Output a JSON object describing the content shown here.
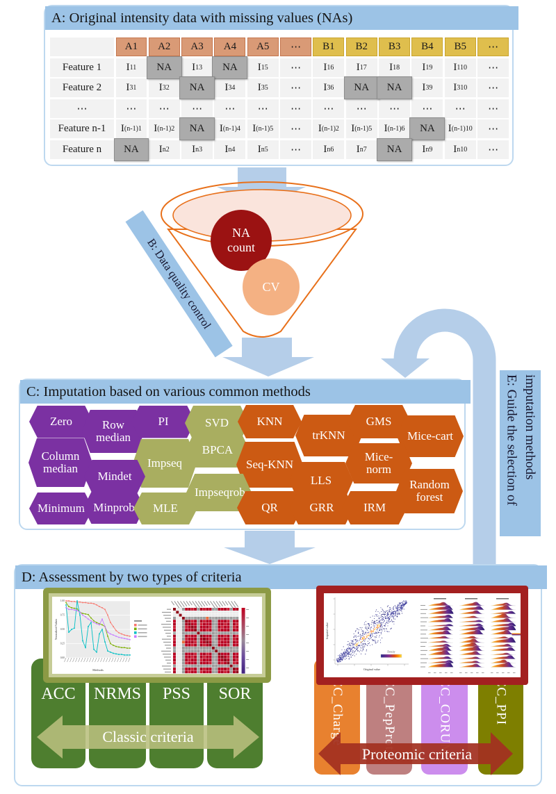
{
  "panel_a": {
    "title": "A: Original intensity data with missing values (NAs)",
    "table": {
      "headers": [
        {
          "t": "",
          "g": "x"
        },
        {
          "t": "A1",
          "g": "a"
        },
        {
          "t": "A2",
          "g": "a"
        },
        {
          "t": "A3",
          "g": "a"
        },
        {
          "t": "A4",
          "g": "a"
        },
        {
          "t": "A5",
          "g": "a"
        },
        {
          "t": "⋯",
          "g": "a"
        },
        {
          "t": "B1",
          "g": "b"
        },
        {
          "t": "B2",
          "g": "b"
        },
        {
          "t": "B3",
          "g": "b"
        },
        {
          "t": "B4",
          "g": "b"
        },
        {
          "t": "B5",
          "g": "b"
        },
        {
          "t": "⋯",
          "g": "b"
        }
      ],
      "rows": [
        {
          "label": "Feature 1",
          "cells": [
            "I_{11}",
            "NA",
            "I_{13}",
            "NA",
            "I_{15}",
            "⋯",
            "I_{16}",
            "I_{17}",
            "I_{18}",
            "I_{19}",
            "I_{110}",
            "⋯"
          ]
        },
        {
          "label": "Feature 2",
          "cells": [
            "I_{31}",
            "I_{32}",
            "NA",
            "I_{34}",
            "I_{35}",
            "⋯",
            "I_{36}",
            "NA",
            "NA",
            "I_{39}",
            "I_{310}",
            "⋯"
          ]
        },
        {
          "label": "⋯",
          "cells": [
            "⋯",
            "⋯",
            "⋯",
            "⋯",
            "⋯",
            "⋯",
            "⋯",
            "⋯",
            "⋯",
            "⋯",
            "⋯",
            "⋯"
          ]
        },
        {
          "label": "Feature n-1",
          "cells": [
            "I_{(n-1)1}",
            "I_{(n-1)2}",
            "NA",
            "I_{(n-1)4}",
            "I_{(n-1)5}",
            "⋯",
            "I_{(n-1)2}",
            "I_{(n-1)5}",
            "I_{(n-1)6}",
            "NA",
            "I_{(n-1)10}",
            "⋯"
          ]
        },
        {
          "label": "Feature n",
          "cells": [
            "NA",
            "I_{n2}",
            "I_{n3}",
            "I_{n4}",
            "I_{n5}",
            "⋯",
            "I_{n6}",
            "I_{n7}",
            "NA",
            "I_{n9}",
            "I_{n10}",
            "⋯"
          ]
        }
      ]
    }
  },
  "panel_b": {
    "label": "B: Data quality control",
    "funnel": {
      "na_line1": "NA",
      "na_line2": "count",
      "cv": "CV"
    }
  },
  "panel_c": {
    "title": "C: Imputation based on various common methods",
    "methods": [
      {
        "label": "Zero",
        "group": "purple"
      },
      {
        "label": "Row median",
        "group": "purple"
      },
      {
        "label": "PI",
        "group": "purple"
      },
      {
        "label": "SVD",
        "group": "green"
      },
      {
        "label": "KNN",
        "group": "orange"
      },
      {
        "label": "trKNN",
        "group": "orange"
      },
      {
        "label": "GMS",
        "group": "orange"
      },
      {
        "label": "Mice-cart",
        "group": "orange"
      },
      {
        "label": "Column median",
        "group": "purple"
      },
      {
        "label": "Impseq",
        "group": "green"
      },
      {
        "label": "BPCA",
        "group": "green"
      },
      {
        "label": "Seq-KNN",
        "group": "orange"
      },
      {
        "label": "Mice-norm",
        "group": "orange"
      },
      {
        "label": "Mindet",
        "group": "purple"
      },
      {
        "label": "LLS",
        "group": "orange"
      },
      {
        "label": "Random forest",
        "group": "orange"
      },
      {
        "label": "Impseqrob",
        "group": "green"
      },
      {
        "label": "Minimum",
        "group": "purple"
      },
      {
        "label": "Minprob",
        "group": "purple"
      },
      {
        "label": "MLE",
        "group": "green"
      },
      {
        "label": "QR",
        "group": "orange"
      },
      {
        "label": "GRR",
        "group": "orange"
      },
      {
        "label": "IRM",
        "group": "orange"
      }
    ]
  },
  "panel_d": {
    "title": "D: Assessment by two types of criteria",
    "classic_boxes": [
      "ACC",
      "NRMS",
      "PSS",
      "SOR"
    ],
    "classic_arrow_label": "Classic criteria",
    "proteomic_columns": [
      "ACC_Charge",
      "ACC_PepProt",
      "ACC_CORUM",
      "ACC_PPI"
    ],
    "proteomic_arrow_label": "Proteomic criteria"
  },
  "panel_e": {
    "label": "E: Guide the selection of imputation methods"
  },
  "colors": {
    "header_blue": "#9CC3E6",
    "arrow_blue": "#B5CEE9",
    "purple": "#7B31A2",
    "green": "#A9AE60",
    "orange": "#CC5A13",
    "na_circle": "#9B1212",
    "cv_circle": "#F4B183",
    "funnel_outline": "#E8701A",
    "funnel_fill": "#FAE4DC",
    "green_box": "#4E7E2F",
    "classic_arrow": "#B9BF7E",
    "proteomic_arrow": "#A33020",
    "col_charge": "#E8812F",
    "col_pepprot": "#BE8080",
    "col_corum": "#CC8DED",
    "col_ppi": "#7E7F00",
    "frame_olive": "#8C9A45",
    "frame_red": "#A32020",
    "na_cell": "#ABABAB",
    "header_a_cell": "#D99A76",
    "header_b_cell": "#DFBE4D"
  },
  "chart_data": [
    {
      "id": "classic-line-chart",
      "type": "line",
      "title": "",
      "xlabel": "Methods",
      "ylabel": "Normalized Values",
      "yticks": [
        "1.00",
        "0.75",
        "0.50",
        "0.25",
        "0.00"
      ],
      "ylim": [
        0,
        1
      ],
      "x_count": 24,
      "legend_position": "right",
      "series": [
        {
          "name": "series-red",
          "color": "#F8766D",
          "values": [
            1.0,
            1.0,
            0.99,
            0.99,
            0.98,
            0.98,
            0.97,
            0.97,
            0.96,
            0.96,
            0.95,
            0.93,
            0.9,
            0.88,
            0.85,
            0.75,
            0.62,
            0.55,
            0.48,
            0.44,
            0.42,
            0.4,
            0.39,
            0.38
          ]
        },
        {
          "name": "series-green",
          "color": "#7CAE00",
          "values": [
            0.97,
            0.9,
            0.88,
            0.87,
            0.86,
            0.8,
            0.78,
            0.77,
            0.76,
            0.7,
            0.65,
            0.62,
            0.6,
            0.58,
            0.55,
            0.38,
            0.25,
            0.22,
            0.2,
            0.19,
            0.18,
            0.18,
            0.17,
            0.17
          ]
        },
        {
          "name": "series-cyan",
          "color": "#00BFC4",
          "values": [
            0.93,
            0.45,
            0.5,
            0.52,
            1.0,
            0.75,
            0.3,
            0.18,
            0.55,
            0.62,
            0.15,
            0.1,
            0.42,
            0.5,
            0.28,
            0.12,
            0.1,
            0.08,
            0.07,
            0.06,
            0.06,
            0.05,
            0.05,
            0.05
          ]
        },
        {
          "name": "series-violet",
          "color": "#C77CFF",
          "values": [
            0.88,
            0.85,
            0.85,
            0.84,
            0.83,
            0.8,
            0.75,
            0.72,
            0.68,
            0.65,
            0.62,
            0.6,
            0.58,
            0.68,
            0.55,
            0.45,
            0.42,
            0.4,
            0.38,
            0.36,
            0.35,
            0.34,
            0.33,
            0.32
          ]
        }
      ]
    },
    {
      "id": "correlation-heatmap",
      "type": "heatmap",
      "size": 22,
      "light_rows": [
        1,
        2
      ],
      "gray_rows": [
        3,
        8,
        13,
        14,
        19
      ],
      "palette": {
        "red": "#C00021",
        "dark_red": "#8F0A18",
        "gray": "#9C9C9C",
        "light": "#ECECEC",
        "scale_top": "#C00020",
        "scale_bottom": "#41217E"
      }
    },
    {
      "id": "density-scatter",
      "type": "scatter",
      "xlabel": "Original value",
      "ylabel": "Imputed value",
      "legend": "Density",
      "points": 900,
      "palette": {
        "low": "#23237A",
        "mid": "#3A3A9A",
        "hot1": "#FF4500",
        "hot2": "#FF9000",
        "hot3": "#FFD700"
      }
    },
    {
      "id": "proteomic-ridges",
      "type": "area",
      "panels": 3,
      "rows_per_panel": 16,
      "gradient": [
        "#FFD24A",
        "#F08C1E",
        "#C2452A",
        "#6A2D8F",
        "#241A6E"
      ]
    }
  ]
}
